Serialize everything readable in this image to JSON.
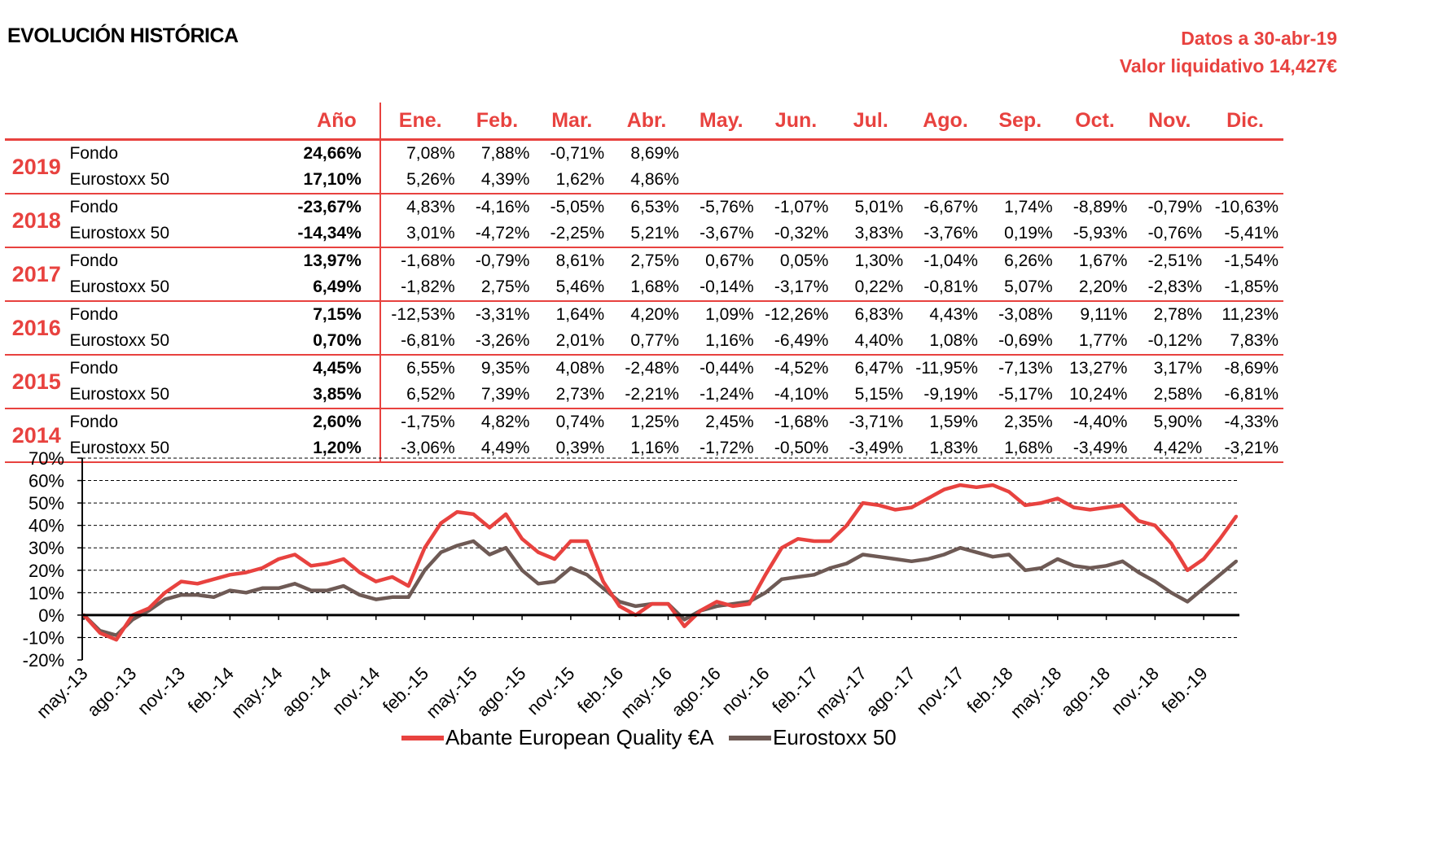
{
  "header": {
    "title": "EVOLUCIÓN HISTÓRICA",
    "date_line": "Datos a 30-abr-19",
    "nav_line": "Valor liquidativo 14,427€"
  },
  "table": {
    "year_header": "Año",
    "months": [
      "Ene.",
      "Feb.",
      "Mar.",
      "Abr.",
      "May.",
      "Jun.",
      "Jul.",
      "Ago.",
      "Sep.",
      "Oct.",
      "Nov.",
      "Dic."
    ],
    "rows": [
      {
        "year": "2019",
        "fund": {
          "label": "Fondo",
          "annual": "24,66%",
          "monthly": [
            "7,08%",
            "7,88%",
            "-0,71%",
            "8,69%",
            "",
            "",
            "",
            "",
            "",
            "",
            "",
            ""
          ]
        },
        "index": {
          "label": "Eurostoxx 50",
          "annual": "17,10%",
          "monthly": [
            "5,26%",
            "4,39%",
            "1,62%",
            "4,86%",
            "",
            "",
            "",
            "",
            "",
            "",
            "",
            ""
          ]
        }
      },
      {
        "year": "2018",
        "fund": {
          "label": "Fondo",
          "annual": "-23,67%",
          "monthly": [
            "4,83%",
            "-4,16%",
            "-5,05%",
            "6,53%",
            "-5,76%",
            "-1,07%",
            "5,01%",
            "-6,67%",
            "1,74%",
            "-8,89%",
            "-0,79%",
            "-10,63%"
          ]
        },
        "index": {
          "label": "Eurostoxx 50",
          "annual": "-14,34%",
          "monthly": [
            "3,01%",
            "-4,72%",
            "-2,25%",
            "5,21%",
            "-3,67%",
            "-0,32%",
            "3,83%",
            "-3,76%",
            "0,19%",
            "-5,93%",
            "-0,76%",
            "-5,41%"
          ]
        }
      },
      {
        "year": "2017",
        "fund": {
          "label": "Fondo",
          "annual": "13,97%",
          "monthly": [
            "-1,68%",
            "-0,79%",
            "8,61%",
            "2,75%",
            "0,67%",
            "0,05%",
            "1,30%",
            "-1,04%",
            "6,26%",
            "1,67%",
            "-2,51%",
            "-1,54%"
          ]
        },
        "index": {
          "label": "Eurostoxx 50",
          "annual": "6,49%",
          "monthly": [
            "-1,82%",
            "2,75%",
            "5,46%",
            "1,68%",
            "-0,14%",
            "-3,17%",
            "0,22%",
            "-0,81%",
            "5,07%",
            "2,20%",
            "-2,83%",
            "-1,85%"
          ]
        }
      },
      {
        "year": "2016",
        "fund": {
          "label": "Fondo",
          "annual": "7,15%",
          "monthly": [
            "-12,53%",
            "-3,31%",
            "1,64%",
            "4,20%",
            "1,09%",
            "-12,26%",
            "6,83%",
            "4,43%",
            "-3,08%",
            "9,11%",
            "2,78%",
            "11,23%"
          ]
        },
        "index": {
          "label": "Eurostoxx 50",
          "annual": "0,70%",
          "monthly": [
            "-6,81%",
            "-3,26%",
            "2,01%",
            "0,77%",
            "1,16%",
            "-6,49%",
            "4,40%",
            "1,08%",
            "-0,69%",
            "1,77%",
            "-0,12%",
            "7,83%"
          ]
        }
      },
      {
        "year": "2015",
        "fund": {
          "label": "Fondo",
          "annual": "4,45%",
          "monthly": [
            "6,55%",
            "9,35%",
            "4,08%",
            "-2,48%",
            "-0,44%",
            "-4,52%",
            "6,47%",
            "-11,95%",
            "-7,13%",
            "13,27%",
            "3,17%",
            "-8,69%"
          ]
        },
        "index": {
          "label": "Eurostoxx 50",
          "annual": "3,85%",
          "monthly": [
            "6,52%",
            "7,39%",
            "2,73%",
            "-2,21%",
            "-1,24%",
            "-4,10%",
            "5,15%",
            "-9,19%",
            "-5,17%",
            "10,24%",
            "2,58%",
            "-6,81%"
          ]
        }
      },
      {
        "year": "2014",
        "fund": {
          "label": "Fondo",
          "annual": "2,60%",
          "monthly": [
            "-1,75%",
            "4,82%",
            "0,74%",
            "1,25%",
            "2,45%",
            "-1,68%",
            "-3,71%",
            "1,59%",
            "2,35%",
            "-4,40%",
            "5,90%",
            "-4,33%"
          ]
        },
        "index": {
          "label": "Eurostoxx 50",
          "annual": "1,20%",
          "monthly": [
            "-3,06%",
            "4,49%",
            "0,39%",
            "1,16%",
            "-1,72%",
            "-0,50%",
            "-3,49%",
            "1,83%",
            "1,68%",
            "-3,49%",
            "4,42%",
            "-3,21%"
          ]
        }
      }
    ]
  },
  "chart_data": {
    "type": "line",
    "ylim": [
      -20,
      70
    ],
    "y_ticks": [
      70,
      60,
      50,
      40,
      30,
      20,
      10,
      0,
      -10,
      -20
    ],
    "y_tick_labels": [
      "70%",
      "60%",
      "50%",
      "40%",
      "30%",
      "20%",
      "10%",
      "0%",
      "-10%",
      "-20%"
    ],
    "x_tick_labels": [
      "may.-13",
      "ago.-13",
      "nov.-13",
      "feb.-14",
      "may.-14",
      "ago.-14",
      "nov.-14",
      "feb.-15",
      "may.-15",
      "ago.-15",
      "nov.-15",
      "feb.-16",
      "may.-16",
      "ago.-16",
      "nov.-16",
      "feb.-17",
      "may.-17",
      "ago.-17",
      "nov.-17",
      "feb.-18",
      "may.-18",
      "ago.-18",
      "nov.-18",
      "feb.-19"
    ],
    "grid": "horizontal dashed",
    "legend_position": "bottom",
    "series": [
      {
        "name": "Abante European Quality €A",
        "color": "#e8423f",
        "x": [
          "may.-13",
          "jun.-13",
          "jul.-13",
          "ago.-13",
          "sep.-13",
          "oct.-13",
          "nov.-13",
          "dic.-13",
          "ene.-14",
          "feb.-14",
          "mar.-14",
          "abr.-14",
          "may.-14",
          "jun.-14",
          "jul.-14",
          "ago.-14",
          "sep.-14",
          "oct.-14",
          "nov.-14",
          "dic.-14",
          "ene.-15",
          "feb.-15",
          "mar.-15",
          "abr.-15",
          "may.-15",
          "jun.-15",
          "jul.-15",
          "ago.-15",
          "sep.-15",
          "oct.-15",
          "nov.-15",
          "dic.-15",
          "ene.-16",
          "feb.-16",
          "mar.-16",
          "abr.-16",
          "may.-16",
          "jun.-16",
          "jul.-16",
          "ago.-16",
          "sep.-16",
          "oct.-16",
          "nov.-16",
          "dic.-16",
          "ene.-17",
          "feb.-17",
          "mar.-17",
          "abr.-17",
          "may.-17",
          "jun.-17",
          "jul.-17",
          "ago.-17",
          "sep.-17",
          "oct.-17",
          "nov.-17",
          "dic.-17",
          "ene.-18",
          "feb.-18",
          "mar.-18",
          "abr.-18",
          "may.-18",
          "jun.-18",
          "jul.-18",
          "ago.-18",
          "sep.-18",
          "oct.-18",
          "nov.-18",
          "dic.-18",
          "ene.-19",
          "feb.-19",
          "mar.-19",
          "abr.-19"
        ],
        "values": [
          0,
          -8,
          -11,
          0,
          3,
          10,
          15,
          14,
          16,
          18,
          19,
          21,
          25,
          27,
          22,
          23,
          25,
          19,
          15,
          17,
          13,
          30,
          41,
          46,
          45,
          39,
          45,
          34,
          28,
          25,
          33,
          33,
          15,
          4,
          0,
          5,
          5,
          -5,
          2,
          6,
          4,
          5,
          18,
          30,
          34,
          33,
          33,
          40,
          50,
          49,
          47,
          48,
          52,
          56,
          58,
          57,
          58,
          55,
          49,
          50,
          52,
          48,
          47,
          48,
          49,
          42,
          40,
          32,
          20,
          25,
          34,
          44
        ]
      },
      {
        "name": "Eurostoxx 50",
        "color": "#6e5a55",
        "x": [
          "may.-13",
          "jun.-13",
          "jul.-13",
          "ago.-13",
          "sep.-13",
          "oct.-13",
          "nov.-13",
          "dic.-13",
          "ene.-14",
          "feb.-14",
          "mar.-14",
          "abr.-14",
          "may.-14",
          "jun.-14",
          "jul.-14",
          "ago.-14",
          "sep.-14",
          "oct.-14",
          "nov.-14",
          "dic.-14",
          "ene.-15",
          "feb.-15",
          "mar.-15",
          "abr.-15",
          "may.-15",
          "jun.-15",
          "jul.-15",
          "ago.-15",
          "sep.-15",
          "oct.-15",
          "nov.-15",
          "dic.-15",
          "ene.-16",
          "feb.-16",
          "mar.-16",
          "abr.-16",
          "may.-16",
          "jun.-16",
          "jul.-16",
          "ago.-16",
          "sep.-16",
          "oct.-16",
          "nov.-16",
          "dic.-16",
          "ene.-17",
          "feb.-17",
          "mar.-17",
          "abr.-17",
          "may.-17",
          "jun.-17",
          "jul.-17",
          "ago.-17",
          "sep.-17",
          "oct.-17",
          "nov.-17",
          "dic.-17",
          "ene.-18",
          "feb.-18",
          "mar.-18",
          "abr.-18",
          "may.-18",
          "jun.-18",
          "jul.-18",
          "ago.-18",
          "sep.-18",
          "oct.-18",
          "nov.-18",
          "dic.-18",
          "ene.-19",
          "feb.-19",
          "mar.-19",
          "abr.-19"
        ],
        "values": [
          0,
          -7,
          -9,
          -2,
          2,
          7,
          9,
          9,
          8,
          11,
          10,
          12,
          12,
          14,
          11,
          11,
          13,
          9,
          7,
          8,
          8,
          20,
          28,
          31,
          33,
          27,
          30,
          20,
          14,
          15,
          21,
          18,
          12,
          6,
          4,
          5,
          5,
          -2,
          2,
          4,
          5,
          6,
          10,
          16,
          17,
          18,
          21,
          23,
          27,
          26,
          25,
          24,
          25,
          27,
          30,
          28,
          26,
          27,
          20,
          21,
          25,
          22,
          21,
          22,
          24,
          19,
          15,
          10,
          6,
          12,
          18,
          24
        ]
      }
    ]
  }
}
